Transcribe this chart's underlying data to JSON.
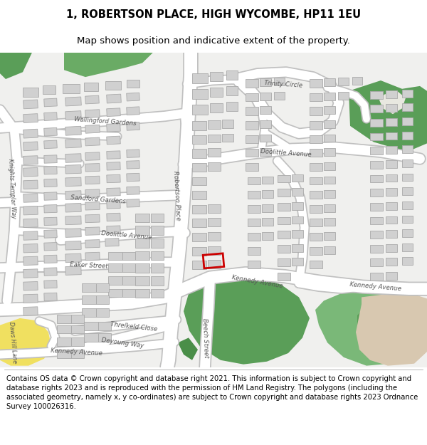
{
  "title": "1, ROBERTSON PLACE, HIGH WYCOMBE, HP11 1EU",
  "subtitle": "Map shows position and indicative extent of the property.",
  "footer": "Contains OS data © Crown copyright and database right 2021. This information is subject to Crown copyright and database rights 2023 and is reproduced with the permission of HM Land Registry. The polygons (including the associated geometry, namely x, y co-ordinates) are subject to Crown copyright and database rights 2023 Ordnance Survey 100026316.",
  "title_fontsize": 10.5,
  "subtitle_fontsize": 9.5,
  "footer_fontsize": 7.2,
  "map_bg": "#f2f2f0",
  "road_color": "#ffffff",
  "road_edge": "#c0c0c0",
  "building_fill": "#d0d0d0",
  "building_edge": "#aaaaaa",
  "green_dark": "#5a9e58",
  "green_light": "#7ab878",
  "beige": "#d8c8b0",
  "yellow": "#f0e060",
  "yellow_edge": "#c8a820",
  "marker_color": "#cc0000",
  "label_color": "#555555",
  "label_fontsize": 6.2
}
